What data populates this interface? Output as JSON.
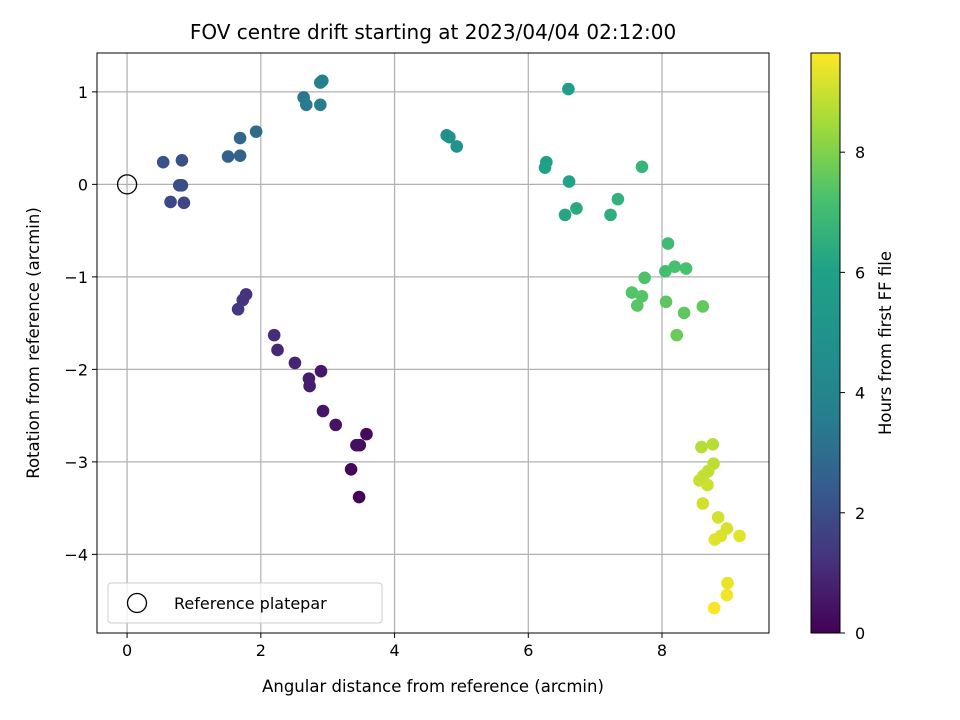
{
  "chart_data": {
    "type": "scatter",
    "title": "FOV centre drift starting at 2023/04/04 02:12:00",
    "xlabel": "Angular distance from reference (arcmin)",
    "ylabel": "Rotation from reference (arcmin)",
    "xlim": [
      -0.45,
      9.6
    ],
    "ylim": [
      -4.85,
      1.42
    ],
    "xticks": [
      0,
      2,
      4,
      6,
      8
    ],
    "xtick_labels": [
      "0",
      "2",
      "4",
      "6",
      "8"
    ],
    "yticks": [
      -4,
      -3,
      -2,
      -1,
      0,
      1
    ],
    "ytick_labels": [
      "−4",
      "−3",
      "−2",
      "−1",
      "0",
      "1"
    ],
    "grid": true,
    "colormap": "viridis",
    "colorbar": {
      "label": "Hours from first FF file",
      "range": [
        0,
        9.65
      ],
      "ticks": [
        0,
        2,
        4,
        6,
        8
      ],
      "tick_labels": [
        "0",
        "2",
        "4",
        "6",
        "8"
      ]
    },
    "reference_point": {
      "x": 0,
      "y": 0,
      "label": "Reference platepar"
    },
    "legend": {
      "position": "lower-left",
      "entries": [
        "Reference platepar"
      ]
    },
    "points": [
      {
        "x": 3.47,
        "y": -3.38,
        "hours": 0.05
      },
      {
        "x": 3.35,
        "y": -3.08,
        "hours": 0.15
      },
      {
        "x": 3.58,
        "y": -2.7,
        "hours": 0.22
      },
      {
        "x": 3.48,
        "y": -2.82,
        "hours": 0.3
      },
      {
        "x": 3.43,
        "y": -2.82,
        "hours": 0.35
      },
      {
        "x": 3.12,
        "y": -2.6,
        "hours": 0.45
      },
      {
        "x": 2.93,
        "y": -2.45,
        "hours": 0.52
      },
      {
        "x": 2.9,
        "y": -2.02,
        "hours": 0.6
      },
      {
        "x": 2.73,
        "y": -2.18,
        "hours": 0.68
      },
      {
        "x": 2.72,
        "y": -2.1,
        "hours": 0.75
      },
      {
        "x": 2.51,
        "y": -1.93,
        "hours": 0.85
      },
      {
        "x": 2.25,
        "y": -1.79,
        "hours": 0.95
      },
      {
        "x": 2.2,
        "y": -1.63,
        "hours": 1.05
      },
      {
        "x": 1.78,
        "y": -1.19,
        "hours": 1.2
      },
      {
        "x": 1.73,
        "y": -1.25,
        "hours": 1.3
      },
      {
        "x": 1.66,
        "y": -1.35,
        "hours": 1.4
      },
      {
        "x": 0.85,
        "y": -0.2,
        "hours": 1.75
      },
      {
        "x": 0.65,
        "y": -0.19,
        "hours": 1.85
      },
      {
        "x": 0.82,
        "y": -0.01,
        "hours": 1.95
      },
      {
        "x": 0.78,
        "y": -0.01,
        "hours": 2.0
      },
      {
        "x": 0.82,
        "y": 0.26,
        "hours": 2.05
      },
      {
        "x": 0.54,
        "y": 0.24,
        "hours": 2.15
      },
      {
        "x": 1.51,
        "y": 0.3,
        "hours": 2.55
      },
      {
        "x": 1.69,
        "y": 0.31,
        "hours": 2.65
      },
      {
        "x": 1.69,
        "y": 0.5,
        "hours": 2.75
      },
      {
        "x": 1.93,
        "y": 0.57,
        "hours": 2.9
      },
      {
        "x": 2.64,
        "y": 0.94,
        "hours": 3.3
      },
      {
        "x": 2.68,
        "y": 0.86,
        "hours": 3.4
      },
      {
        "x": 2.89,
        "y": 0.86,
        "hours": 3.55
      },
      {
        "x": 2.89,
        "y": 1.1,
        "hours": 3.65
      },
      {
        "x": 2.92,
        "y": 1.12,
        "hours": 3.75
      },
      {
        "x": 4.78,
        "y": 0.53,
        "hours": 4.7
      },
      {
        "x": 4.82,
        "y": 0.51,
        "hours": 4.8
      },
      {
        "x": 4.93,
        "y": 0.41,
        "hours": 4.9
      },
      {
        "x": 6.6,
        "y": 1.03,
        "hours": 5.8
      },
      {
        "x": 6.27,
        "y": 0.24,
        "hours": 5.9
      },
      {
        "x": 6.25,
        "y": 0.18,
        "hours": 6.0
      },
      {
        "x": 6.61,
        "y": 0.03,
        "hours": 6.1
      },
      {
        "x": 6.55,
        "y": -0.33,
        "hours": 6.2
      },
      {
        "x": 6.72,
        "y": -0.26,
        "hours": 6.3
      },
      {
        "x": 7.23,
        "y": -0.33,
        "hours": 6.5
      },
      {
        "x": 7.34,
        "y": -0.16,
        "hours": 6.6
      },
      {
        "x": 7.7,
        "y": 0.19,
        "hours": 6.75
      },
      {
        "x": 8.09,
        "y": -0.64,
        "hours": 7.0
      },
      {
        "x": 8.05,
        "y": -0.94,
        "hours": 7.1
      },
      {
        "x": 8.19,
        "y": -0.89,
        "hours": 7.15
      },
      {
        "x": 8.36,
        "y": -0.91,
        "hours": 7.2
      },
      {
        "x": 7.74,
        "y": -1.01,
        "hours": 7.3
      },
      {
        "x": 7.55,
        "y": -1.17,
        "hours": 7.35
      },
      {
        "x": 7.7,
        "y": -1.21,
        "hours": 7.4
      },
      {
        "x": 7.63,
        "y": -1.31,
        "hours": 7.45
      },
      {
        "x": 8.06,
        "y": -1.27,
        "hours": 7.5
      },
      {
        "x": 8.33,
        "y": -1.39,
        "hours": 7.55
      },
      {
        "x": 8.61,
        "y": -1.32,
        "hours": 7.6
      },
      {
        "x": 8.22,
        "y": -1.63,
        "hours": 7.7
      },
      {
        "x": 8.59,
        "y": -2.84,
        "hours": 8.7
      },
      {
        "x": 8.76,
        "y": -2.81,
        "hours": 8.75
      },
      {
        "x": 8.77,
        "y": -3.02,
        "hours": 8.8
      },
      {
        "x": 8.69,
        "y": -3.1,
        "hours": 8.85
      },
      {
        "x": 8.62,
        "y": -3.15,
        "hours": 8.9
      },
      {
        "x": 8.56,
        "y": -3.2,
        "hours": 8.95
      },
      {
        "x": 8.68,
        "y": -3.25,
        "hours": 9.0
      },
      {
        "x": 8.61,
        "y": -3.45,
        "hours": 9.05
      },
      {
        "x": 8.84,
        "y": -3.6,
        "hours": 9.1
      },
      {
        "x": 8.97,
        "y": -3.72,
        "hours": 9.15
      },
      {
        "x": 8.88,
        "y": -3.8,
        "hours": 9.2
      },
      {
        "x": 8.79,
        "y": -3.84,
        "hours": 9.25
      },
      {
        "x": 9.16,
        "y": -3.8,
        "hours": 9.3
      },
      {
        "x": 8.98,
        "y": -4.31,
        "hours": 9.4
      },
      {
        "x": 8.97,
        "y": -4.44,
        "hours": 9.5
      },
      {
        "x": 8.78,
        "y": -4.58,
        "hours": 9.6
      }
    ]
  }
}
